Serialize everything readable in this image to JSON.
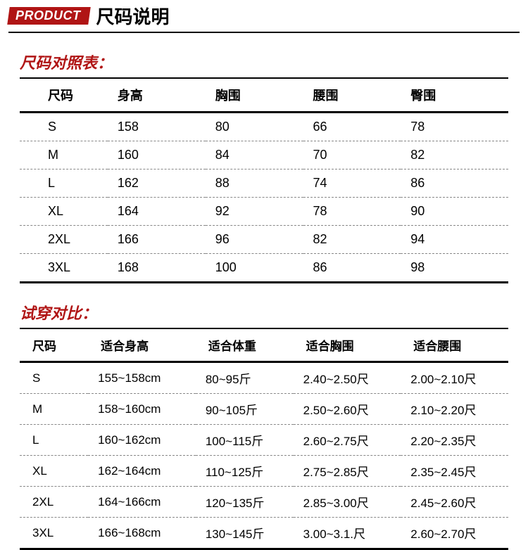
{
  "header": {
    "badge": "PRODUCT",
    "title": "尺码说明"
  },
  "colors": {
    "accent": "#b01515",
    "text": "#000000",
    "background": "#ffffff",
    "dash": "#888888"
  },
  "table1": {
    "title": "尺码对照表：",
    "columns": [
      "尺码",
      "身高",
      "胸围",
      "腰围",
      "臀围"
    ],
    "rows": [
      [
        "S",
        "158",
        "80",
        "66",
        "78"
      ],
      [
        "M",
        "160",
        "84",
        "70",
        "82"
      ],
      [
        "L",
        "162",
        "88",
        "74",
        "86"
      ],
      [
        "XL",
        "164",
        "92",
        "78",
        "90"
      ],
      [
        "2XL",
        "166",
        "96",
        "82",
        "94"
      ],
      [
        "3XL",
        "168",
        "100",
        "86",
        "98"
      ]
    ]
  },
  "table2": {
    "title": "试穿对比：",
    "columns": [
      "尺码",
      "适合身高",
      "适合体重",
      "适合胸围",
      "适合腰围"
    ],
    "rows": [
      [
        "S",
        "155~158cm",
        "80~95斤",
        "2.40~2.50尺",
        "2.00~2.10尺"
      ],
      [
        "M",
        "158~160cm",
        "90~105斤",
        "2.50~2.60尺",
        "2.10~2.20尺"
      ],
      [
        "L",
        "160~162cm",
        "100~115斤",
        "2.60~2.75尺",
        "2.20~2.35尺"
      ],
      [
        "XL",
        "162~164cm",
        "110~125斤",
        "2.75~2.85尺",
        "2.35~2.45尺"
      ],
      [
        "2XL",
        "164~166cm",
        "120~135斤",
        "2.85~3.00尺",
        "2.45~2.60尺"
      ],
      [
        "3XL",
        "166~168cm",
        "130~145斤",
        "3.00~3.1.尺",
        "2.60~2.70尺"
      ]
    ]
  }
}
